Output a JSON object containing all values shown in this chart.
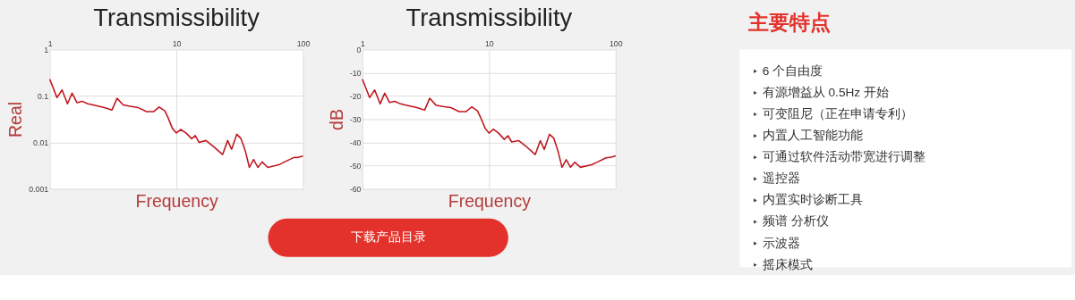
{
  "chart_data": [
    {
      "type": "line",
      "title": "Transmissibility",
      "xlabel": "Frequency",
      "ylabel": "Real",
      "log": "xy",
      "grid": true,
      "xlim": [
        1,
        100
      ],
      "xticks": [
        1,
        10,
        100
      ],
      "ylim": [
        0.001,
        1
      ],
      "yticks": [
        0.001,
        0.01,
        0.1,
        1
      ],
      "annotations": [
        "下载产品目录"
      ],
      "series": [
        {
          "color": "#c0161d",
          "x": [
            1,
            1.14,
            1.25,
            1.38,
            1.5,
            1.64,
            1.8,
            2,
            2.2,
            2.7,
            3.1,
            3.4,
            3.8,
            4.3,
            5,
            5.8,
            6.6,
            7.3,
            8.1,
            8.6,
            9.3,
            10,
            10.8,
            11.9,
            13.2,
            14.1,
            15.1,
            17.1,
            19.9,
            23.2,
            25.4,
            27.3,
            30,
            32.4,
            35,
            37.7,
            40.7,
            44,
            47.5,
            52.7,
            64.5,
            71.5,
            83.9,
            92.6,
            100
          ],
          "values": [
            0.23,
            0.092,
            0.135,
            0.068,
            0.115,
            0.072,
            0.077,
            0.068,
            0.064,
            0.056,
            0.05,
            0.089,
            0.064,
            0.06,
            0.056,
            0.046,
            0.046,
            0.058,
            0.048,
            0.034,
            0.02,
            0.016,
            0.019,
            0.016,
            0.012,
            0.014,
            0.01,
            0.011,
            0.0079,
            0.0055,
            0.011,
            0.0071,
            0.015,
            0.012,
            0.0066,
            0.0029,
            0.0043,
            0.0029,
            0.0038,
            0.0029,
            0.0033,
            0.0038,
            0.0047,
            0.0048,
            0.0051
          ]
        }
      ]
    },
    {
      "type": "line",
      "title": "Transmissibility",
      "xlabel": "Frequency",
      "ylabel": "dB",
      "log": "x",
      "grid": true,
      "xlim": [
        1,
        100
      ],
      "xticks": [
        1,
        10,
        100
      ],
      "ylim": [
        -60,
        0
      ],
      "yticks": [
        -60,
        -50,
        -40,
        -30,
        -20,
        -10,
        0
      ],
      "series": [
        {
          "color": "#c0161d",
          "x": [
            1,
            1.14,
            1.25,
            1.38,
            1.5,
            1.64,
            1.8,
            2,
            2.2,
            2.7,
            3.1,
            3.4,
            3.8,
            4.3,
            5,
            5.8,
            6.6,
            7.3,
            8.1,
            8.6,
            9.3,
            10,
            10.8,
            11.9,
            13.2,
            14.1,
            15.1,
            17.1,
            19.9,
            23.2,
            25.4,
            27.3,
            30,
            32.4,
            35,
            37.7,
            40.7,
            44,
            47.5,
            52.7,
            64.5,
            71.5,
            83.9,
            92.6,
            100
          ],
          "values": [
            -12.8,
            -20.7,
            -17.4,
            -23.4,
            -18.8,
            -22.8,
            -22.3,
            -23.4,
            -23.9,
            -25,
            -26.1,
            -21,
            -23.9,
            -24.5,
            -25,
            -26.7,
            -26.7,
            -24.7,
            -26.4,
            -29.4,
            -33.8,
            -36,
            -34.3,
            -36,
            -38.7,
            -37.1,
            -39.8,
            -39.2,
            -42,
            -45.2,
            -39.2,
            -43,
            -36.5,
            -38.1,
            -43.6,
            -50.7,
            -47.4,
            -50.7,
            -48.5,
            -50.7,
            -49.6,
            -48.5,
            -46.6,
            -46.3,
            -45.8
          ]
        }
      ]
    },
    {
      "type": "other",
      "title": "主要特点",
      "annotations": [
        "6 个自由度",
        "有源增益从 0.5Hz 开始",
        "可变阻尼（正在申请专利）",
        "内置人工智能功能",
        "可通过软件活动带宽进行调整",
        "遥控器",
        "内置实时诊断工具",
        "频谱 分析仪",
        "示波器",
        "摇床模式"
      ]
    }
  ]
}
